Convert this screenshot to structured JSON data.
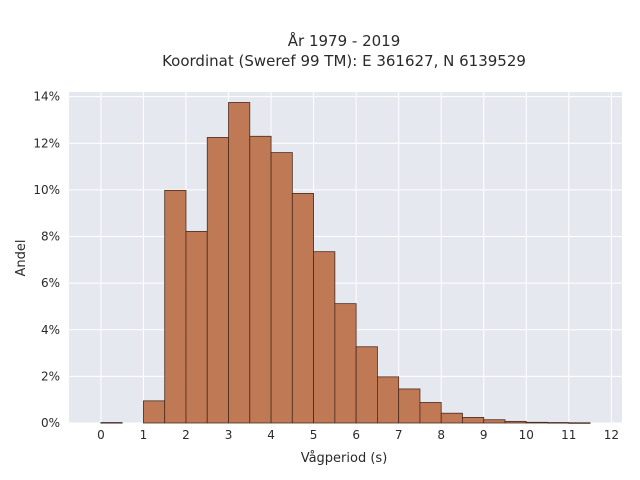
{
  "chart_data": {
    "type": "bar",
    "title_lines": [
      "År 1979 - 2019",
      "Koordinat (Sweref 99 TM): E 361627, N 6139529"
    ],
    "xlabel": "Vågperiod (s)",
    "ylabel": "Andel",
    "x_ticks": [
      "0",
      "1",
      "2",
      "3",
      "4",
      "5",
      "6",
      "7",
      "8",
      "9",
      "10",
      "11",
      "12"
    ],
    "y_ticks": [
      "0%",
      "2%",
      "4%",
      "6%",
      "8%",
      "10%",
      "12%",
      "14%"
    ],
    "xlim": [
      -0.75,
      12.25
    ],
    "ylim": [
      0,
      14.2
    ],
    "bin_width": 0.5,
    "bins": [
      {
        "x0": 0.0,
        "value": 0.02
      },
      {
        "x0": 1.0,
        "value": 0.95
      },
      {
        "x0": 1.5,
        "value": 9.98
      },
      {
        "x0": 2.0,
        "value": 8.22
      },
      {
        "x0": 2.5,
        "value": 12.25
      },
      {
        "x0": 3.0,
        "value": 13.75
      },
      {
        "x0": 3.5,
        "value": 12.3
      },
      {
        "x0": 4.0,
        "value": 11.6
      },
      {
        "x0": 4.5,
        "value": 9.85
      },
      {
        "x0": 5.0,
        "value": 7.35
      },
      {
        "x0": 5.5,
        "value": 5.12
      },
      {
        "x0": 6.0,
        "value": 3.27
      },
      {
        "x0": 6.5,
        "value": 1.98
      },
      {
        "x0": 7.0,
        "value": 1.46
      },
      {
        "x0": 7.5,
        "value": 0.88
      },
      {
        "x0": 8.0,
        "value": 0.42
      },
      {
        "x0": 8.5,
        "value": 0.24
      },
      {
        "x0": 9.0,
        "value": 0.14
      },
      {
        "x0": 9.5,
        "value": 0.07
      },
      {
        "x0": 10.0,
        "value": 0.03
      },
      {
        "x0": 10.5,
        "value": 0.02
      },
      {
        "x0": 11.0,
        "value": 0.01
      }
    ],
    "grid": true,
    "colors": {
      "bar_fill": "#bf7a55",
      "bar_edge": "#4a2a1e",
      "plot_bg": "#e6e8f0",
      "grid": "#ffffff"
    }
  }
}
